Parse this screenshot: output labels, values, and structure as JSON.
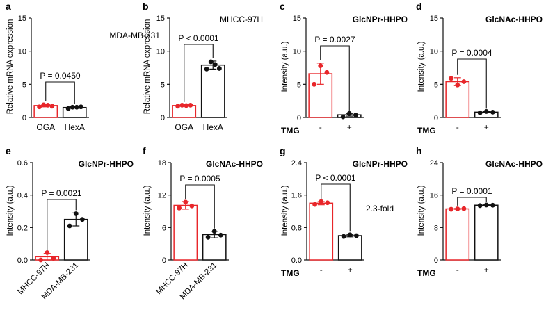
{
  "colors": {
    "red": "#e8262a",
    "black": "#111111"
  },
  "chart_data": [
    {
      "type": "bar",
      "panel_letter": "a",
      "title": "MDA-MB-231",
      "ylabel": "Relative mRNA expression",
      "ylim": [
        0,
        15
      ],
      "yticks": [
        "0",
        "5",
        "10",
        "15"
      ],
      "categories": [
        "OGA",
        "HexA"
      ],
      "values": [
        1.8,
        1.5
      ],
      "errors": [
        0.2,
        0.1
      ],
      "points": [
        [
          1.6,
          1.9,
          1.85,
          1.7
        ],
        [
          1.35,
          1.55,
          1.55,
          1.6
        ]
      ],
      "pvalue": "P = 0.0450",
      "treatment_label": "",
      "annotation": ""
    },
    {
      "type": "bar",
      "panel_letter": "b",
      "title": "MHCC-97H",
      "ylabel": "Relative mRNA expression",
      "ylim": [
        0,
        15
      ],
      "yticks": [
        "0",
        "5",
        "10",
        "15"
      ],
      "categories": [
        "OGA",
        "HexA"
      ],
      "values": [
        1.8,
        7.9
      ],
      "errors": [
        0.1,
        0.6
      ],
      "points": [
        [
          1.7,
          1.85,
          1.8,
          1.85
        ],
        [
          7.3,
          8.4,
          8.0,
          7.4
        ]
      ],
      "pvalue": "P < 0.0001",
      "treatment_label": "",
      "annotation": ""
    },
    {
      "type": "bar",
      "panel_letter": "c",
      "title": "GlcNPr-HHPO",
      "ylabel": "Intensity (a.u.)",
      "ylim": [
        0,
        15
      ],
      "yticks": [
        "0",
        "5",
        "10",
        "15"
      ],
      "categories": [
        "-",
        "+"
      ],
      "values": [
        6.6,
        0.4
      ],
      "errors": [
        1.6,
        0.2
      ],
      "points": [
        [
          5.0,
          7.8,
          6.8
        ],
        [
          0.1,
          0.6,
          0.35
        ]
      ],
      "pvalue": "P = 0.0027",
      "treatment_label": "TMG",
      "annotation": ""
    },
    {
      "type": "bar",
      "panel_letter": "d",
      "title": "GlcNAc-HHPO",
      "ylabel": "Intensity (a.u.)",
      "ylim": [
        0,
        15
      ],
      "yticks": [
        "0",
        "5",
        "10",
        "15"
      ],
      "categories": [
        "-",
        "+"
      ],
      "values": [
        5.4,
        0.8
      ],
      "errors": [
        0.6,
        0.1
      ],
      "points": [
        [
          5.9,
          4.9,
          5.4
        ],
        [
          0.7,
          0.9,
          0.8
        ]
      ],
      "pvalue": "P = 0.0004",
      "treatment_label": "TMG",
      "annotation": ""
    },
    {
      "type": "bar",
      "panel_letter": "e",
      "title": "GlcNPr-HHPO",
      "ylabel": "Intensity (a.u.)",
      "ylim": [
        0,
        0.6
      ],
      "yticks": [
        "0.0",
        "0.2",
        "0.4",
        "0.6"
      ],
      "categories": [
        "MHCC-97H",
        "MDA-MB-231"
      ],
      "values": [
        0.02,
        0.25
      ],
      "errors": [
        0.02,
        0.04
      ],
      "points": [
        [
          0.0,
          0.045,
          0.01
        ],
        [
          0.21,
          0.285,
          0.25
        ]
      ],
      "pvalue": "P = 0.0021",
      "treatment_label": "",
      "annotation": ""
    },
    {
      "type": "bar",
      "panel_letter": "f",
      "title": "GlcNAc-HHPO",
      "ylabel": "Intensity (a.u.)",
      "ylim": [
        0,
        18
      ],
      "yticks": [
        "0",
        "6",
        "12",
        "18"
      ],
      "categories": [
        "MHCC-97H",
        "MDA-MB-231"
      ],
      "values": [
        10.1,
        4.7
      ],
      "errors": [
        0.7,
        0.6
      ],
      "points": [
        [
          9.6,
          10.7,
          10.0
        ],
        [
          4.2,
          5.3,
          4.6
        ]
      ],
      "pvalue": "P = 0.0005",
      "treatment_label": "",
      "annotation": ""
    },
    {
      "type": "bar",
      "panel_letter": "g",
      "title": "GlcNPr-HHPO",
      "ylabel": "Intensity (a.u.)",
      "ylim": [
        0,
        2.4
      ],
      "yticks": [
        "0.0",
        "0.8",
        "1.6",
        "2.4"
      ],
      "categories": [
        "-",
        "+"
      ],
      "values": [
        1.4,
        0.6
      ],
      "errors": [
        0.04,
        0.03
      ],
      "points": [
        [
          1.37,
          1.44,
          1.41
        ],
        [
          0.58,
          0.62,
          0.6
        ]
      ],
      "pvalue": "P < 0.0001",
      "treatment_label": "TMG",
      "annotation": "2.3-fold"
    },
    {
      "type": "bar",
      "panel_letter": "h",
      "title": "GlcNAc-HHPO",
      "ylabel": "Intensity (a.u.)",
      "ylim": [
        0,
        24
      ],
      "yticks": [
        "0",
        "8",
        "16",
        "24"
      ],
      "categories": [
        "-",
        "+"
      ],
      "values": [
        12.6,
        13.5
      ],
      "errors": [
        0.1,
        0.1
      ],
      "points": [
        [
          12.5,
          12.6,
          12.65
        ],
        [
          13.4,
          13.55,
          13.5
        ]
      ],
      "pvalue": "P = 0.0001",
      "treatment_label": "TMG",
      "annotation": ""
    }
  ]
}
